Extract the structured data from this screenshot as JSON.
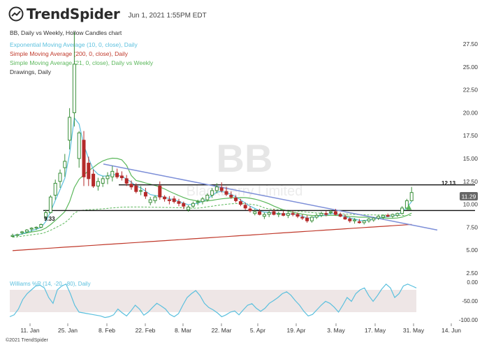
{
  "header": {
    "brand": "TrendSpider",
    "datetime": "Jun 1, 2021 1:55PM EDT"
  },
  "legend": {
    "title": "BB, Daily vs Weekly, Hollow Candles chart",
    "ema": "Exponential Moving Average (10, 0, close), Daily",
    "sma200": "Simple Moving Average (200, 0, close), Daily",
    "sma21": "Simple Moving Average (21, 0, close), Daily vs Weekly",
    "drawings": "Drawings, Daily"
  },
  "watermark": {
    "symbol": "BB",
    "company": "BlackBerry Limited"
  },
  "annotations": {
    "level_high": "12.13",
    "level_low": "9.33",
    "last_price": "11.29"
  },
  "williams_label": "Williams %R (14, -20, -80), Daily",
  "copyright": "©2021 TrendSpider",
  "colors": {
    "ema": "#5bc0de",
    "sma200": "#c0392b",
    "sma21": "#5cb85c",
    "up": "#3a8f3a",
    "down": "#b52a2a",
    "trendline": "#7d8fd8",
    "williams": "#5bc0de",
    "williams_band": "#eee6e6",
    "price_tag": "#666666"
  },
  "chart_data": {
    "type": "candlestick",
    "ylim": [
      2.5,
      27.5
    ],
    "yticks": [
      "27.50",
      "25.00",
      "22.50",
      "20.00",
      "17.50",
      "15.00",
      "12.50",
      "10.00",
      "7.50",
      "5.00",
      "2.50"
    ],
    "xticks": [
      "11. Jan",
      "25. Jan",
      "8. Feb",
      "22. Feb",
      "8. Mar",
      "22. Mar",
      "5. Apr",
      "19. Apr",
      "3. May",
      "17. May",
      "31. May",
      "14. Jun"
    ],
    "candles": [
      [
        6.5,
        6.8,
        6.4,
        6.6
      ],
      [
        6.6,
        6.8,
        6.5,
        6.7
      ],
      [
        6.9,
        7.1,
        6.7,
        7.0
      ],
      [
        7.0,
        7.3,
        6.9,
        7.2
      ],
      [
        7.3,
        7.5,
        7.0,
        7.4
      ],
      [
        7.4,
        7.6,
        7.2,
        7.5
      ],
      [
        7.5,
        7.9,
        7.4,
        7.8
      ],
      [
        8.6,
        9.4,
        8.2,
        9.1
      ],
      [
        9.1,
        11.0,
        9.0,
        10.8
      ],
      [
        11.0,
        12.7,
        10.5,
        12.3
      ],
      [
        12.5,
        13.8,
        11.8,
        13.4
      ],
      [
        14.0,
        15.5,
        13.0,
        14.7
      ],
      [
        17.0,
        20.5,
        16.0,
        19.5
      ],
      [
        20.0,
        28.8,
        18.5,
        25.3
      ],
      [
        15.0,
        18.0,
        14.0,
        17.8
      ],
      [
        17.0,
        18.0,
        12.0,
        13.0
      ],
      [
        14.5,
        15.2,
        12.0,
        12.8
      ],
      [
        13.3,
        13.8,
        11.8,
        12.0
      ],
      [
        12.0,
        12.9,
        11.5,
        12.5
      ],
      [
        12.3,
        13.1,
        11.9,
        12.8
      ],
      [
        12.8,
        13.5,
        12.2,
        13.1
      ],
      [
        13.0,
        14.2,
        12.5,
        13.6
      ],
      [
        13.4,
        13.9,
        12.8,
        13.0
      ],
      [
        13.1,
        13.6,
        12.6,
        12.9
      ],
      [
        12.8,
        13.2,
        12.0,
        12.3
      ],
      [
        12.2,
        12.6,
        11.6,
        11.9
      ],
      [
        12.0,
        12.3,
        11.2,
        11.4
      ],
      [
        11.5,
        12.0,
        11.0,
        11.5
      ],
      [
        11.3,
        11.8,
        10.6,
        10.9
      ],
      [
        10.2,
        10.8,
        9.9,
        10.5
      ],
      [
        10.4,
        11.0,
        10.1,
        10.8
      ],
      [
        12.0,
        12.5,
        10.5,
        10.8
      ],
      [
        10.8,
        11.0,
        10.3,
        10.6
      ],
      [
        10.5,
        10.9,
        10.0,
        10.4
      ],
      [
        10.6,
        10.9,
        10.1,
        10.3
      ],
      [
        10.3,
        10.6,
        9.8,
        10.1
      ],
      [
        10.1,
        10.3,
        9.5,
        9.8
      ],
      [
        9.4,
        9.9,
        9.2,
        9.7
      ],
      [
        9.8,
        10.3,
        9.6,
        10.1
      ],
      [
        10.2,
        10.5,
        9.9,
        10.3
      ],
      [
        10.3,
        10.8,
        10.0,
        10.6
      ],
      [
        10.5,
        11.2,
        10.3,
        11.0
      ],
      [
        11.0,
        11.8,
        10.7,
        11.5
      ],
      [
        11.5,
        12.3,
        11.2,
        11.9
      ],
      [
        11.8,
        12.4,
        11.3,
        11.5
      ],
      [
        11.4,
        11.9,
        10.9,
        11.1
      ],
      [
        11.0,
        11.4,
        10.6,
        10.8
      ],
      [
        10.7,
        11.0,
        10.2,
        10.4
      ],
      [
        10.3,
        10.6,
        9.8,
        10.0
      ],
      [
        9.9,
        10.2,
        9.4,
        9.6
      ],
      [
        9.5,
        9.8,
        9.1,
        9.3
      ],
      [
        9.0,
        9.5,
        8.8,
        9.2
      ],
      [
        9.2,
        9.5,
        8.8,
        8.9
      ],
      [
        8.7,
        9.1,
        8.4,
        8.9
      ],
      [
        8.9,
        9.3,
        8.6,
        9.1
      ],
      [
        9.2,
        9.5,
        8.8,
        8.9
      ],
      [
        8.9,
        9.2,
        8.6,
        9.0
      ],
      [
        9.0,
        9.3,
        8.7,
        8.8
      ],
      [
        8.8,
        9.2,
        8.5,
        9.0
      ],
      [
        9.0,
        9.3,
        8.7,
        8.9
      ],
      [
        8.9,
        9.1,
        8.5,
        8.7
      ],
      [
        8.6,
        8.9,
        8.3,
        8.5
      ],
      [
        8.5,
        8.8,
        8.0,
        8.2
      ],
      [
        8.2,
        8.7,
        8.0,
        8.6
      ],
      [
        8.6,
        9.0,
        8.4,
        8.8
      ],
      [
        8.8,
        9.2,
        8.6,
        9.0
      ],
      [
        9.0,
        9.3,
        8.7,
        8.9
      ],
      [
        9.1,
        9.4,
        8.9,
        9.2
      ],
      [
        9.2,
        9.5,
        8.8,
        8.9
      ],
      [
        8.9,
        9.1,
        8.6,
        8.7
      ],
      [
        8.6,
        8.9,
        8.3,
        8.4
      ],
      [
        8.4,
        8.6,
        8.0,
        8.2
      ],
      [
        8.2,
        8.5,
        7.9,
        8.3
      ],
      [
        8.1,
        8.4,
        7.9,
        8.0
      ],
      [
        8.0,
        8.3,
        7.8,
        8.2
      ],
      [
        8.2,
        8.5,
        8.0,
        8.4
      ],
      [
        8.3,
        8.6,
        8.1,
        8.5
      ],
      [
        8.5,
        8.8,
        8.3,
        8.7
      ],
      [
        8.6,
        8.9,
        8.4,
        8.8
      ],
      [
        8.8,
        9.0,
        8.6,
        8.7
      ],
      [
        8.7,
        9.0,
        8.5,
        8.9
      ],
      [
        8.8,
        9.1,
        8.6,
        9.0
      ],
      [
        9.0,
        9.8,
        8.9,
        9.6
      ],
      [
        9.6,
        10.6,
        9.5,
        10.4
      ],
      [
        10.4,
        11.9,
        10.3,
        11.29
      ]
    ]
  }
}
